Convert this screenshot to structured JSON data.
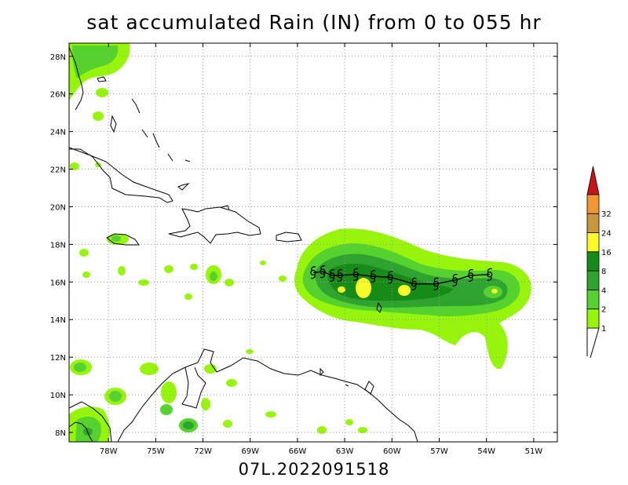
{
  "title": "sat accumulated Rain (IN) from 0 to 055 hr",
  "footer": "07L.2022091518",
  "map": {
    "lat_labels": [
      "28N",
      "26N",
      "24N",
      "22N",
      "20N",
      "18N",
      "16N",
      "14N",
      "12N",
      "10N",
      "8N"
    ],
    "lon_labels": [
      "78W",
      "75W",
      "72W",
      "69W",
      "66W",
      "63W",
      "60W",
      "57W",
      "54W",
      "51W"
    ],
    "lat_range": [
      7.5,
      28.7
    ],
    "lon_range": [
      -80.5,
      -49.5
    ],
    "grid": true
  },
  "legend": {
    "levels": [
      "1",
      "2",
      "4",
      "8",
      "16",
      "24",
      "32"
    ],
    "colors": [
      "#96f50a",
      "#55d22d",
      "#2ea42e",
      "#168c16",
      "#fafa28",
      "#c8963c",
      "#f09632",
      "#c81414"
    ]
  },
  "storm_track": {
    "symbol": "tropical-storm-icon",
    "points": [
      {
        "lon": -65.0,
        "lat": 16.5
      },
      {
        "lon": -64.4,
        "lat": 16.55
      },
      {
        "lon": -63.8,
        "lat": 16.35
      },
      {
        "lon": -63.3,
        "lat": 16.35
      },
      {
        "lon": -62.3,
        "lat": 16.4
      },
      {
        "lon": -61.2,
        "lat": 16.3
      },
      {
        "lon": -60.1,
        "lat": 16.25
      },
      {
        "lon": -58.6,
        "lat": 15.9
      },
      {
        "lon": -57.2,
        "lat": 15.9
      },
      {
        "lon": -56.0,
        "lat": 16.1
      },
      {
        "lon": -55.0,
        "lat": 16.35
      },
      {
        "lon": -53.8,
        "lat": 16.4
      }
    ]
  }
}
